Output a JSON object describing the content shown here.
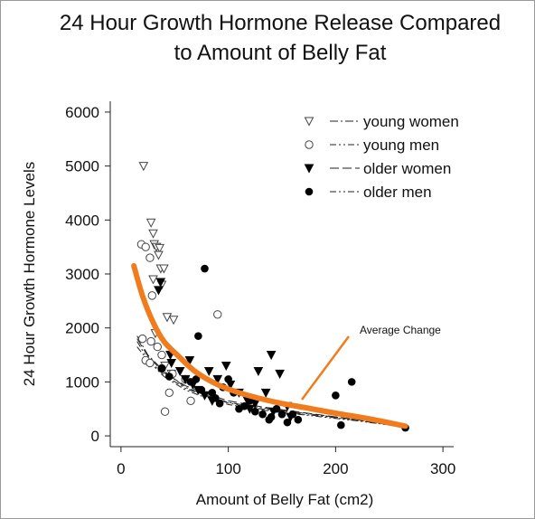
{
  "chart_data": {
    "type": "scatter",
    "title": "24 Hour Growth Hormone Release Compared",
    "subtitle": "to Amount of Belly Fat",
    "xlabel": "Amount of Belly Fat (cm2)",
    "ylabel": "24 Hour Growth Hormone Levels",
    "xlim": [
      -10,
      310
    ],
    "ylim": [
      -200,
      6200
    ],
    "xticks": [
      0,
      100,
      200,
      300
    ],
    "yticks": [
      0,
      1000,
      2000,
      3000,
      4000,
      5000,
      6000
    ],
    "grid": false,
    "legend_position": "top-right",
    "series": [
      {
        "name": "young women",
        "marker": "open-triangle-down",
        "line_style": "dash-dot",
        "points": [
          [
            21,
            5000
          ],
          [
            28,
            3950
          ],
          [
            30,
            3750
          ],
          [
            31,
            3550
          ],
          [
            33,
            3500
          ],
          [
            36,
            3480
          ],
          [
            35,
            3350
          ],
          [
            37,
            3100
          ],
          [
            40,
            3100
          ],
          [
            30,
            2900
          ],
          [
            38,
            2800
          ],
          [
            43,
            2200
          ],
          [
            49,
            2150
          ],
          [
            32,
            1900
          ],
          [
            41,
            1300
          ],
          [
            47,
            1150
          ]
        ]
      },
      {
        "name": "young men",
        "marker": "open-circle",
        "line_style": "dash-dot-dot",
        "points": [
          [
            19,
            3550
          ],
          [
            23,
            3500
          ],
          [
            27,
            3300
          ],
          [
            29,
            2600
          ],
          [
            20,
            1800
          ],
          [
            28,
            1750
          ],
          [
            34,
            1650
          ],
          [
            38,
            1500
          ],
          [
            90,
            2250
          ],
          [
            23,
            1400
          ],
          [
            27,
            1350
          ],
          [
            38,
            1250
          ],
          [
            48,
            1150
          ],
          [
            60,
            1050
          ],
          [
            45,
            800
          ],
          [
            65,
            650
          ],
          [
            41,
            450
          ]
        ]
      },
      {
        "name": "older women",
        "marker": "filled-triangle-down",
        "line_style": "long-dash",
        "points": [
          [
            37,
            2850
          ],
          [
            35,
            2700
          ],
          [
            46,
            1500
          ],
          [
            47,
            1350
          ],
          [
            55,
            1200
          ],
          [
            60,
            1050
          ],
          [
            67,
            950
          ],
          [
            72,
            850
          ],
          [
            78,
            750
          ],
          [
            85,
            650
          ],
          [
            90,
            1050
          ],
          [
            102,
            950
          ],
          [
            110,
            800
          ],
          [
            118,
            650
          ],
          [
            125,
            600
          ],
          [
            128,
            1200
          ],
          [
            135,
            800
          ],
          [
            140,
            1500
          ],
          [
            142,
            450
          ],
          [
            148,
            1150
          ],
          [
            155,
            550
          ],
          [
            158,
            350
          ],
          [
            120,
            500
          ],
          [
            98,
            1300
          ],
          [
            64,
            1400
          ],
          [
            82,
            1200
          ]
        ]
      },
      {
        "name": "older men",
        "marker": "filled-circle",
        "line_style": "dash-dot-dot",
        "points": [
          [
            78,
            3100
          ],
          [
            72,
            1850
          ],
          [
            38,
            1250
          ],
          [
            45,
            1100
          ],
          [
            65,
            1000
          ],
          [
            70,
            1050
          ],
          [
            75,
            850
          ],
          [
            85,
            800
          ],
          [
            88,
            700
          ],
          [
            92,
            600
          ],
          [
            95,
            900
          ],
          [
            100,
            1050
          ],
          [
            105,
            800
          ],
          [
            115,
            550
          ],
          [
            120,
            650
          ],
          [
            125,
            450
          ],
          [
            132,
            400
          ],
          [
            138,
            300
          ],
          [
            145,
            500
          ],
          [
            150,
            400
          ],
          [
            155,
            250
          ],
          [
            160,
            400
          ],
          [
            165,
            300
          ],
          [
            200,
            750
          ],
          [
            205,
            200
          ],
          [
            215,
            1000
          ],
          [
            265,
            150
          ],
          [
            110,
            500
          ],
          [
            140,
            350
          ]
        ]
      }
    ],
    "trend_lines": [
      {
        "series": "young women",
        "points": [
          [
            15,
            1850
          ],
          [
            25,
            1500
          ],
          [
            40,
            1200
          ],
          [
            60,
            900
          ],
          [
            80,
            750
          ],
          [
            100,
            620
          ],
          [
            130,
            520
          ],
          [
            170,
            420
          ],
          [
            220,
            300
          ],
          [
            265,
            170
          ]
        ]
      },
      {
        "series": "young men",
        "points": [
          [
            15,
            1650
          ],
          [
            25,
            1400
          ],
          [
            40,
            1100
          ],
          [
            60,
            850
          ],
          [
            80,
            700
          ],
          [
            100,
            580
          ],
          [
            130,
            480
          ],
          [
            170,
            390
          ],
          [
            220,
            280
          ],
          [
            265,
            160
          ]
        ]
      },
      {
        "series": "older women",
        "points": [
          [
            15,
            1800
          ],
          [
            25,
            1480
          ],
          [
            40,
            1170
          ],
          [
            60,
            930
          ],
          [
            80,
            780
          ],
          [
            100,
            650
          ],
          [
            130,
            540
          ],
          [
            170,
            430
          ],
          [
            220,
            300
          ],
          [
            265,
            170
          ]
        ]
      },
      {
        "series": "older men",
        "points": [
          [
            15,
            1750
          ],
          [
            25,
            1420
          ],
          [
            40,
            1130
          ],
          [
            60,
            880
          ],
          [
            80,
            730
          ],
          [
            100,
            610
          ],
          [
            130,
            500
          ],
          [
            170,
            400
          ],
          [
            220,
            290
          ],
          [
            265,
            160
          ]
        ]
      }
    ],
    "average_curve": {
      "label": "Average Change",
      "color": "#f07c1e",
      "points": [
        [
          12,
          3150
        ],
        [
          20,
          2600
        ],
        [
          30,
          2100
        ],
        [
          40,
          1750
        ],
        [
          55,
          1450
        ],
        [
          70,
          1180
        ],
        [
          90,
          950
        ],
        [
          110,
          800
        ],
        [
          130,
          690
        ],
        [
          150,
          600
        ],
        [
          175,
          510
        ],
        [
          200,
          420
        ],
        [
          230,
          320
        ],
        [
          265,
          180
        ]
      ]
    }
  }
}
